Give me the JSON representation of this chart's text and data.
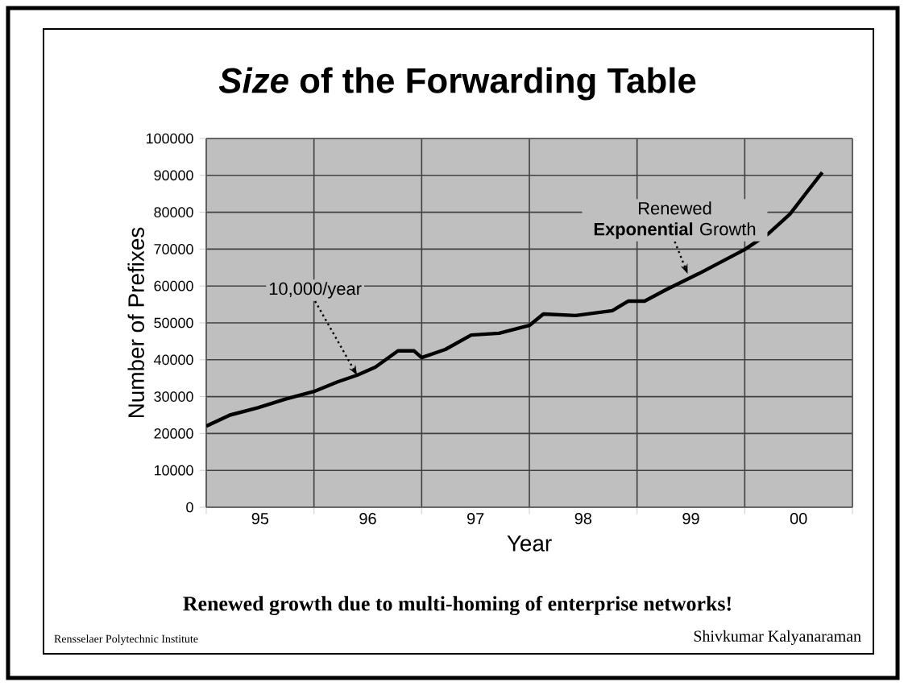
{
  "chart_data": {
    "type": "line",
    "title": "*Size* of the Forwarding Table",
    "xlabel": "Year",
    "ylabel": "Number of Prefixes",
    "x": [
      1994.5,
      1994.72,
      1994.98,
      1995.23,
      1995.5,
      1995.72,
      1995.9,
      1996.07,
      1996.28,
      1996.43,
      1996.5,
      1996.72,
      1996.96,
      1997.22,
      1997.5,
      1997.63,
      1997.93,
      1998.27,
      1998.42,
      1998.57,
      1998.77,
      1999.07,
      1999.5,
      1999.72,
      1999.92,
      2000.07,
      2000.22
    ],
    "series": [
      {
        "color": "#000000",
        "values": [
          22000,
          25000,
          27000,
          29300,
          31400,
          34000,
          35800,
          38000,
          42400,
          42400,
          40600,
          42800,
          46700,
          47200,
          49300,
          52400,
          52000,
          53300,
          55900,
          55900,
          59000,
          63300,
          69900,
          74200,
          79500,
          85200,
          90800
        ]
      }
    ],
    "xlim": [
      1994.5,
      2000.5
    ],
    "xticks": [
      {
        "value": 1994.5,
        "label": null
      },
      {
        "value": 1995.5,
        "label": null
      },
      {
        "value": 1996.5,
        "label": null
      },
      {
        "value": 1997.5,
        "label": null
      },
      {
        "value": 1998.5,
        "label": null
      },
      {
        "value": 1999.5,
        "label": null
      },
      {
        "value": 2000.5,
        "label": null
      },
      {
        "value": 1995,
        "label": "95"
      },
      {
        "value": 1996,
        "label": "96"
      },
      {
        "value": 1997,
        "label": "97"
      },
      {
        "value": 1998,
        "label": "98"
      },
      {
        "value": 1999,
        "label": "99"
      },
      {
        "value": 2000,
        "label": "00"
      }
    ],
    "ylim": [
      0,
      100000
    ],
    "yticks": [
      0,
      10000,
      20000,
      30000,
      40000,
      50000,
      60000,
      70000,
      80000,
      90000,
      100000
    ],
    "grid": true,
    "marker": "none",
    "annotations": [
      {
        "text": "10,000/year",
        "x": 1995.9,
        "y": 35800
      },
      {
        "text": "Renewed **Exponential** Growth",
        "x": 1998.97,
        "y": 63300
      },
      "Renewed growth due to multi-homing of enterprise networks!",
      "Rensselaer Polytechnic Institute",
      "Shivkumar Kalyanaraman"
    ]
  }
}
